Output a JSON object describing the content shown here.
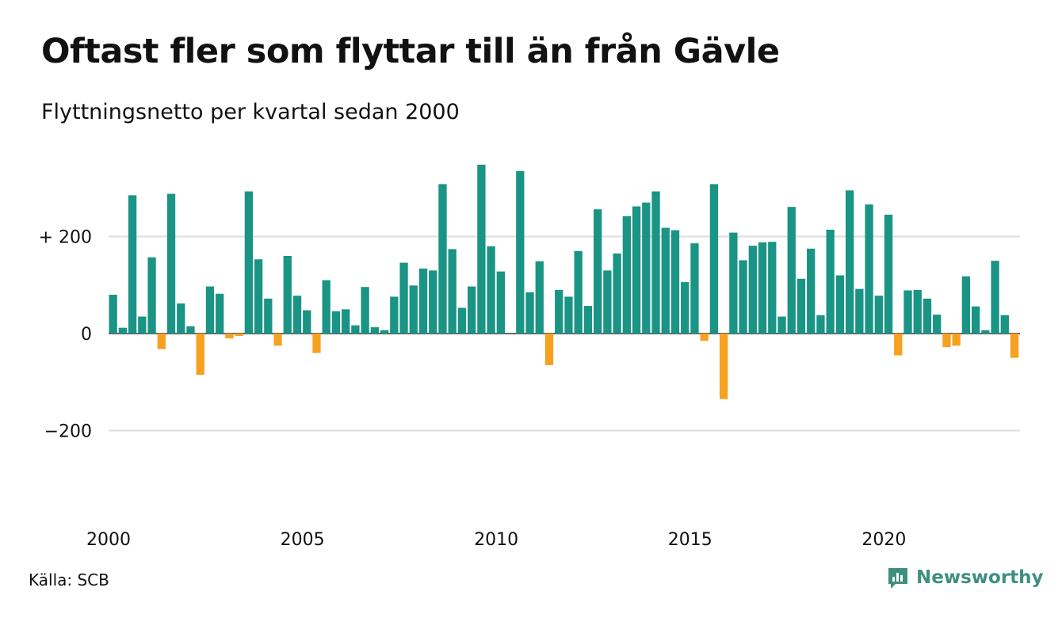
{
  "title": "Oftast fler som flyttar till än från Gävle",
  "subtitle": "Flyttningsnetto per kvartal sedan 2000",
  "source": "Källa: SCB",
  "brand": {
    "name": "Newsworthy",
    "icon": "newsworthy-logo-icon"
  },
  "colors": {
    "positive": "#1a9484",
    "negative": "#f6a11f",
    "grid": "#dddddd",
    "zero_line": "#333333"
  },
  "chart_data": {
    "type": "bar",
    "title": "Oftast fler som flyttar till än från Gävle",
    "subtitle": "Flyttningsnetto per kvartal sedan 2000",
    "x_start": "2000 Q1",
    "ylim": [
      -300,
      350
    ],
    "y_ticks": [
      {
        "value": 200,
        "label": "+ 200"
      },
      {
        "value": 0,
        "label": "0"
      },
      {
        "value": -200,
        "label": "−200"
      }
    ],
    "x_ticks": [
      {
        "year": 2000,
        "label": "2000"
      },
      {
        "year": 2005,
        "label": "2005"
      },
      {
        "year": 2010,
        "label": "2010"
      },
      {
        "year": 2015,
        "label": "2015"
      },
      {
        "year": 2020,
        "label": "2020"
      }
    ],
    "grid": true,
    "values": [
      80,
      12,
      285,
      35,
      157,
      -32,
      288,
      62,
      15,
      -85,
      97,
      82,
      -10,
      -5,
      293,
      153,
      72,
      -25,
      160,
      78,
      48,
      -40,
      110,
      46,
      50,
      17,
      96,
      13,
      7,
      76,
      146,
      99,
      134,
      130,
      308,
      174,
      53,
      97,
      348,
      180,
      128,
      0,
      335,
      85,
      149,
      -65,
      90,
      76,
      170,
      57,
      256,
      130,
      165,
      242,
      262,
      270,
      293,
      218,
      213,
      106,
      186,
      -15,
      308,
      -135,
      208,
      151,
      181,
      188,
      189,
      35,
      261,
      113,
      175,
      38,
      214,
      120,
      295,
      92,
      266,
      78,
      245,
      -45,
      89,
      90,
      72,
      39,
      -28,
      -25,
      118,
      56,
      7,
      150,
      38,
      -50
    ]
  }
}
